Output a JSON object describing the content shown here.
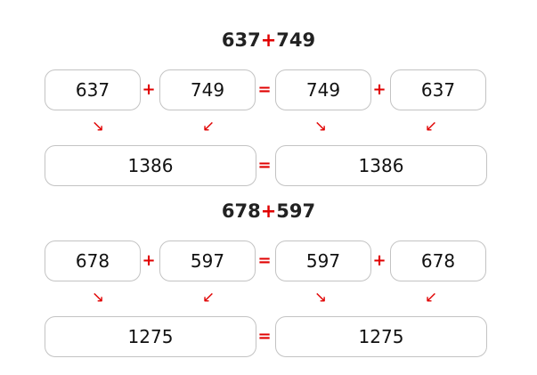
{
  "problems": [
    {
      "title": {
        "a": "637",
        "op": "+",
        "b": "749"
      },
      "left_a": "637",
      "left_b": "749",
      "right_a": "749",
      "right_b": "637",
      "plus": "+",
      "equals": "=",
      "arrow_right": "↘",
      "arrow_left": "↙",
      "sum_left": "1386",
      "sum_right": "1386"
    },
    {
      "title": {
        "a": "678",
        "op": "+",
        "b": "597"
      },
      "left_a": "678",
      "left_b": "597",
      "right_a": "597",
      "right_b": "678",
      "plus": "+",
      "equals": "=",
      "arrow_right": "↘",
      "arrow_left": "↙",
      "sum_left": "1275",
      "sum_right": "1275"
    }
  ],
  "colors": {
    "operator": "#e00000",
    "text": "#222222",
    "border": "#c3c3c3"
  }
}
